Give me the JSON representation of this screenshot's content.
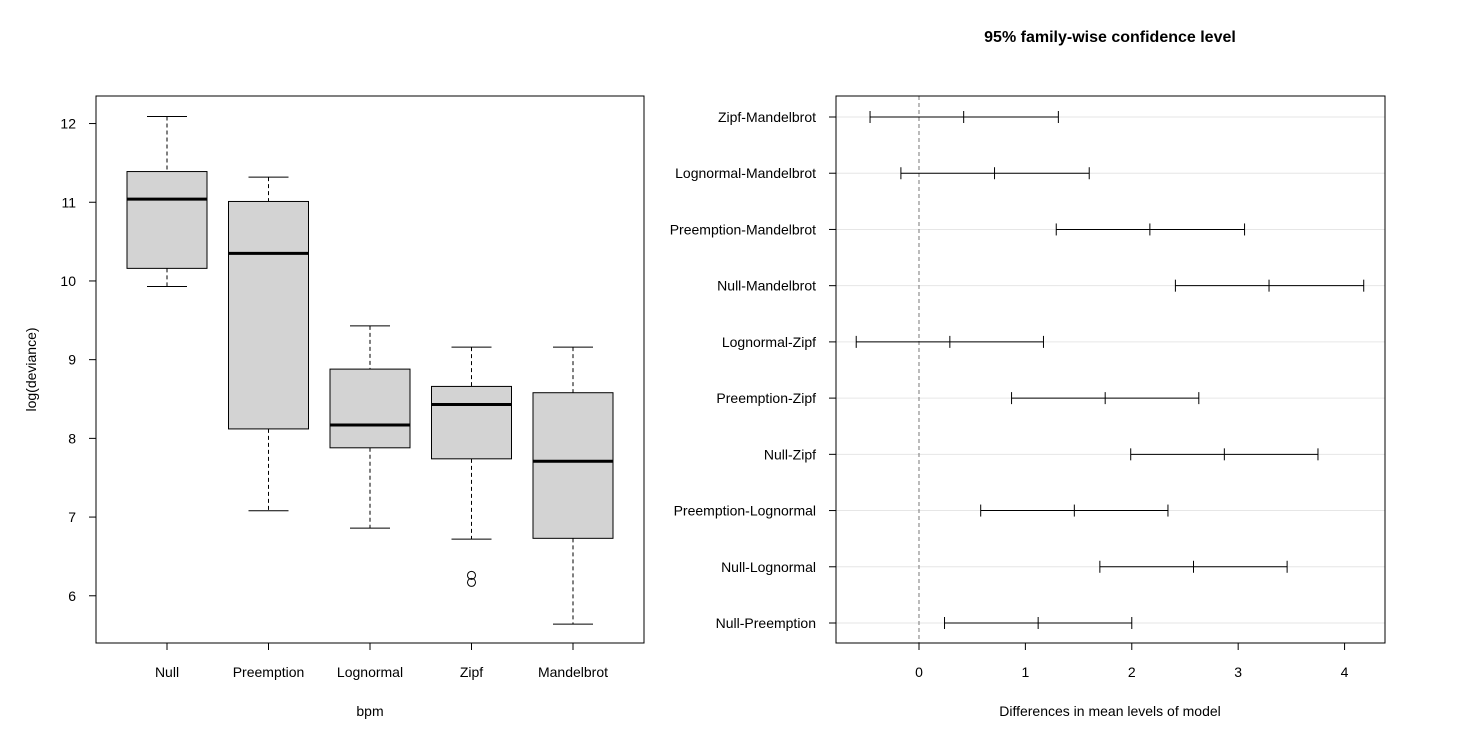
{
  "chart_data": [
    {
      "type": "boxplot",
      "title": "",
      "xlabel": "bpm",
      "ylabel": "log(deviance)",
      "ylim": [
        5.4,
        12.35
      ],
      "yticks": [
        6,
        7,
        8,
        9,
        10,
        11,
        12
      ],
      "grid": false,
      "box_color": "#d3d3d3",
      "categories": [
        "Null",
        "Preemption",
        "Lognormal",
        "Zipf",
        "Mandelbrot"
      ],
      "boxes": [
        {
          "label": "Null",
          "whisker_low": 9.93,
          "q1": 10.16,
          "median": 11.04,
          "q3": 11.39,
          "whisker_high": 12.09,
          "outliers": []
        },
        {
          "label": "Preemption",
          "whisker_low": 7.08,
          "q1": 8.12,
          "median": 10.35,
          "q3": 11.01,
          "whisker_high": 11.32,
          "outliers": []
        },
        {
          "label": "Lognormal",
          "whisker_low": 6.86,
          "q1": 7.88,
          "median": 8.17,
          "q3": 8.88,
          "whisker_high": 9.43,
          "outliers": []
        },
        {
          "label": "Zipf",
          "whisker_low": 6.72,
          "q1": 7.74,
          "median": 8.43,
          "q3": 8.66,
          "whisker_high": 9.16,
          "outliers": [
            6.17,
            6.26
          ]
        },
        {
          "label": "Mandelbrot",
          "whisker_low": 5.64,
          "q1": 6.73,
          "median": 7.71,
          "q3": 8.58,
          "whisker_high": 9.16,
          "outliers": []
        }
      ]
    },
    {
      "type": "interval",
      "title": "95% family-wise confidence level",
      "xlabel": "Differences in mean levels of model",
      "ylabel": "",
      "xlim": [
        -0.78,
        4.38
      ],
      "xticks": [
        0,
        1,
        2,
        3,
        4
      ],
      "reference_line": 0,
      "grid": true,
      "intervals": [
        {
          "label": "Zipf-Mandelbrot",
          "lwr": -0.46,
          "diff": 0.42,
          "upr": 1.31
        },
        {
          "label": "Lognormal-Mandelbrot",
          "lwr": -0.17,
          "diff": 0.71,
          "upr": 1.6
        },
        {
          "label": "Preemption-Mandelbrot",
          "lwr": 1.29,
          "diff": 2.17,
          "upr": 3.06
        },
        {
          "label": "Null-Mandelbrot",
          "lwr": 2.41,
          "diff": 3.29,
          "upr": 4.18
        },
        {
          "label": "Lognormal-Zipf",
          "lwr": -0.59,
          "diff": 0.29,
          "upr": 1.17
        },
        {
          "label": "Preemption-Zipf",
          "lwr": 0.87,
          "diff": 1.75,
          "upr": 2.63
        },
        {
          "label": "Null-Zipf",
          "lwr": 1.99,
          "diff": 2.87,
          "upr": 3.75
        },
        {
          "label": "Preemption-Lognormal",
          "lwr": 0.58,
          "diff": 1.46,
          "upr": 2.34
        },
        {
          "label": "Null-Lognormal",
          "lwr": 1.7,
          "diff": 2.58,
          "upr": 3.46
        },
        {
          "label": "Null-Preemption",
          "lwr": 0.24,
          "diff": 1.12,
          "upr": 2.0
        }
      ]
    }
  ]
}
